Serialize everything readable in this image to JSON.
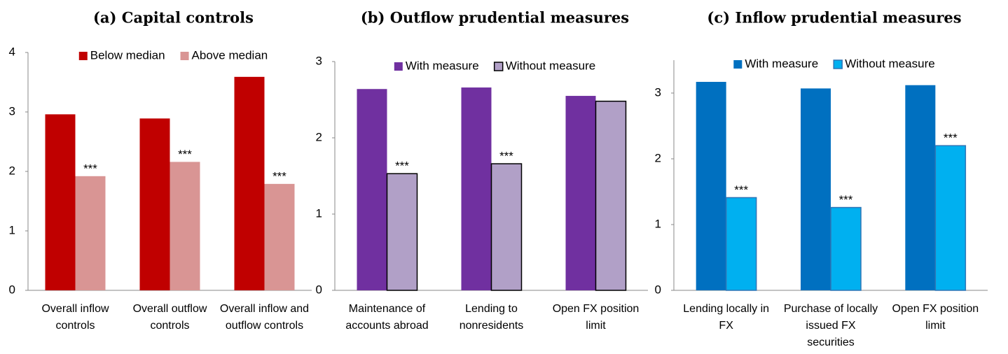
{
  "chart_data": [
    {
      "type": "bar",
      "title": "(a) Capital controls",
      "categories": [
        "Overall inflow controls",
        "Overall outflow controls",
        "Overall inflow and outflow controls"
      ],
      "series": [
        {
          "name": "Below median",
          "color": "#c00000",
          "values": [
            2.96,
            2.89,
            3.59
          ]
        },
        {
          "name": "Above median",
          "color": "#d99594",
          "values": [
            1.92,
            2.16,
            1.79
          ],
          "annotations": [
            "***",
            "***",
            "***"
          ]
        }
      ],
      "ylim": [
        0,
        4
      ],
      "yticks": [
        0,
        1,
        2,
        3,
        4
      ],
      "legend": "top"
    },
    {
      "type": "bar",
      "title": "(b) Outflow prudential measures",
      "categories": [
        "Maintenance of accounts abroad",
        "Lending to nonresidents",
        "Open FX position limit"
      ],
      "series": [
        {
          "name": "With measure",
          "color": "#7030a0",
          "values": [
            2.64,
            2.66,
            2.55
          ]
        },
        {
          "name": "Without measure",
          "color": "#b1a0c7",
          "edgecolor": "#000000",
          "values": [
            1.53,
            1.66,
            2.48
          ],
          "annotations": [
            "***",
            "***",
            null
          ]
        }
      ],
      "ylim": [
        0,
        3
      ],
      "yticks": [
        0,
        1,
        2,
        3
      ],
      "legend": "top"
    },
    {
      "type": "bar",
      "title": "(c) Inflow prudential measures",
      "categories": [
        "Lending locally in FX",
        "Purchase of locally issued FX securities",
        "Open FX position limit"
      ],
      "series": [
        {
          "name": "With measure",
          "color": "#0070c0",
          "values": [
            3.17,
            3.07,
            3.12
          ]
        },
        {
          "name": "Without measure",
          "color": "#00b0f0",
          "edgecolor": "#2e75b6",
          "values": [
            1.41,
            1.26,
            2.2
          ],
          "annotations": [
            "***",
            "***",
            "***"
          ]
        }
      ],
      "ylim": [
        0,
        3.5
      ],
      "yticks": [
        0,
        1,
        2,
        3
      ],
      "legend": "top"
    }
  ]
}
